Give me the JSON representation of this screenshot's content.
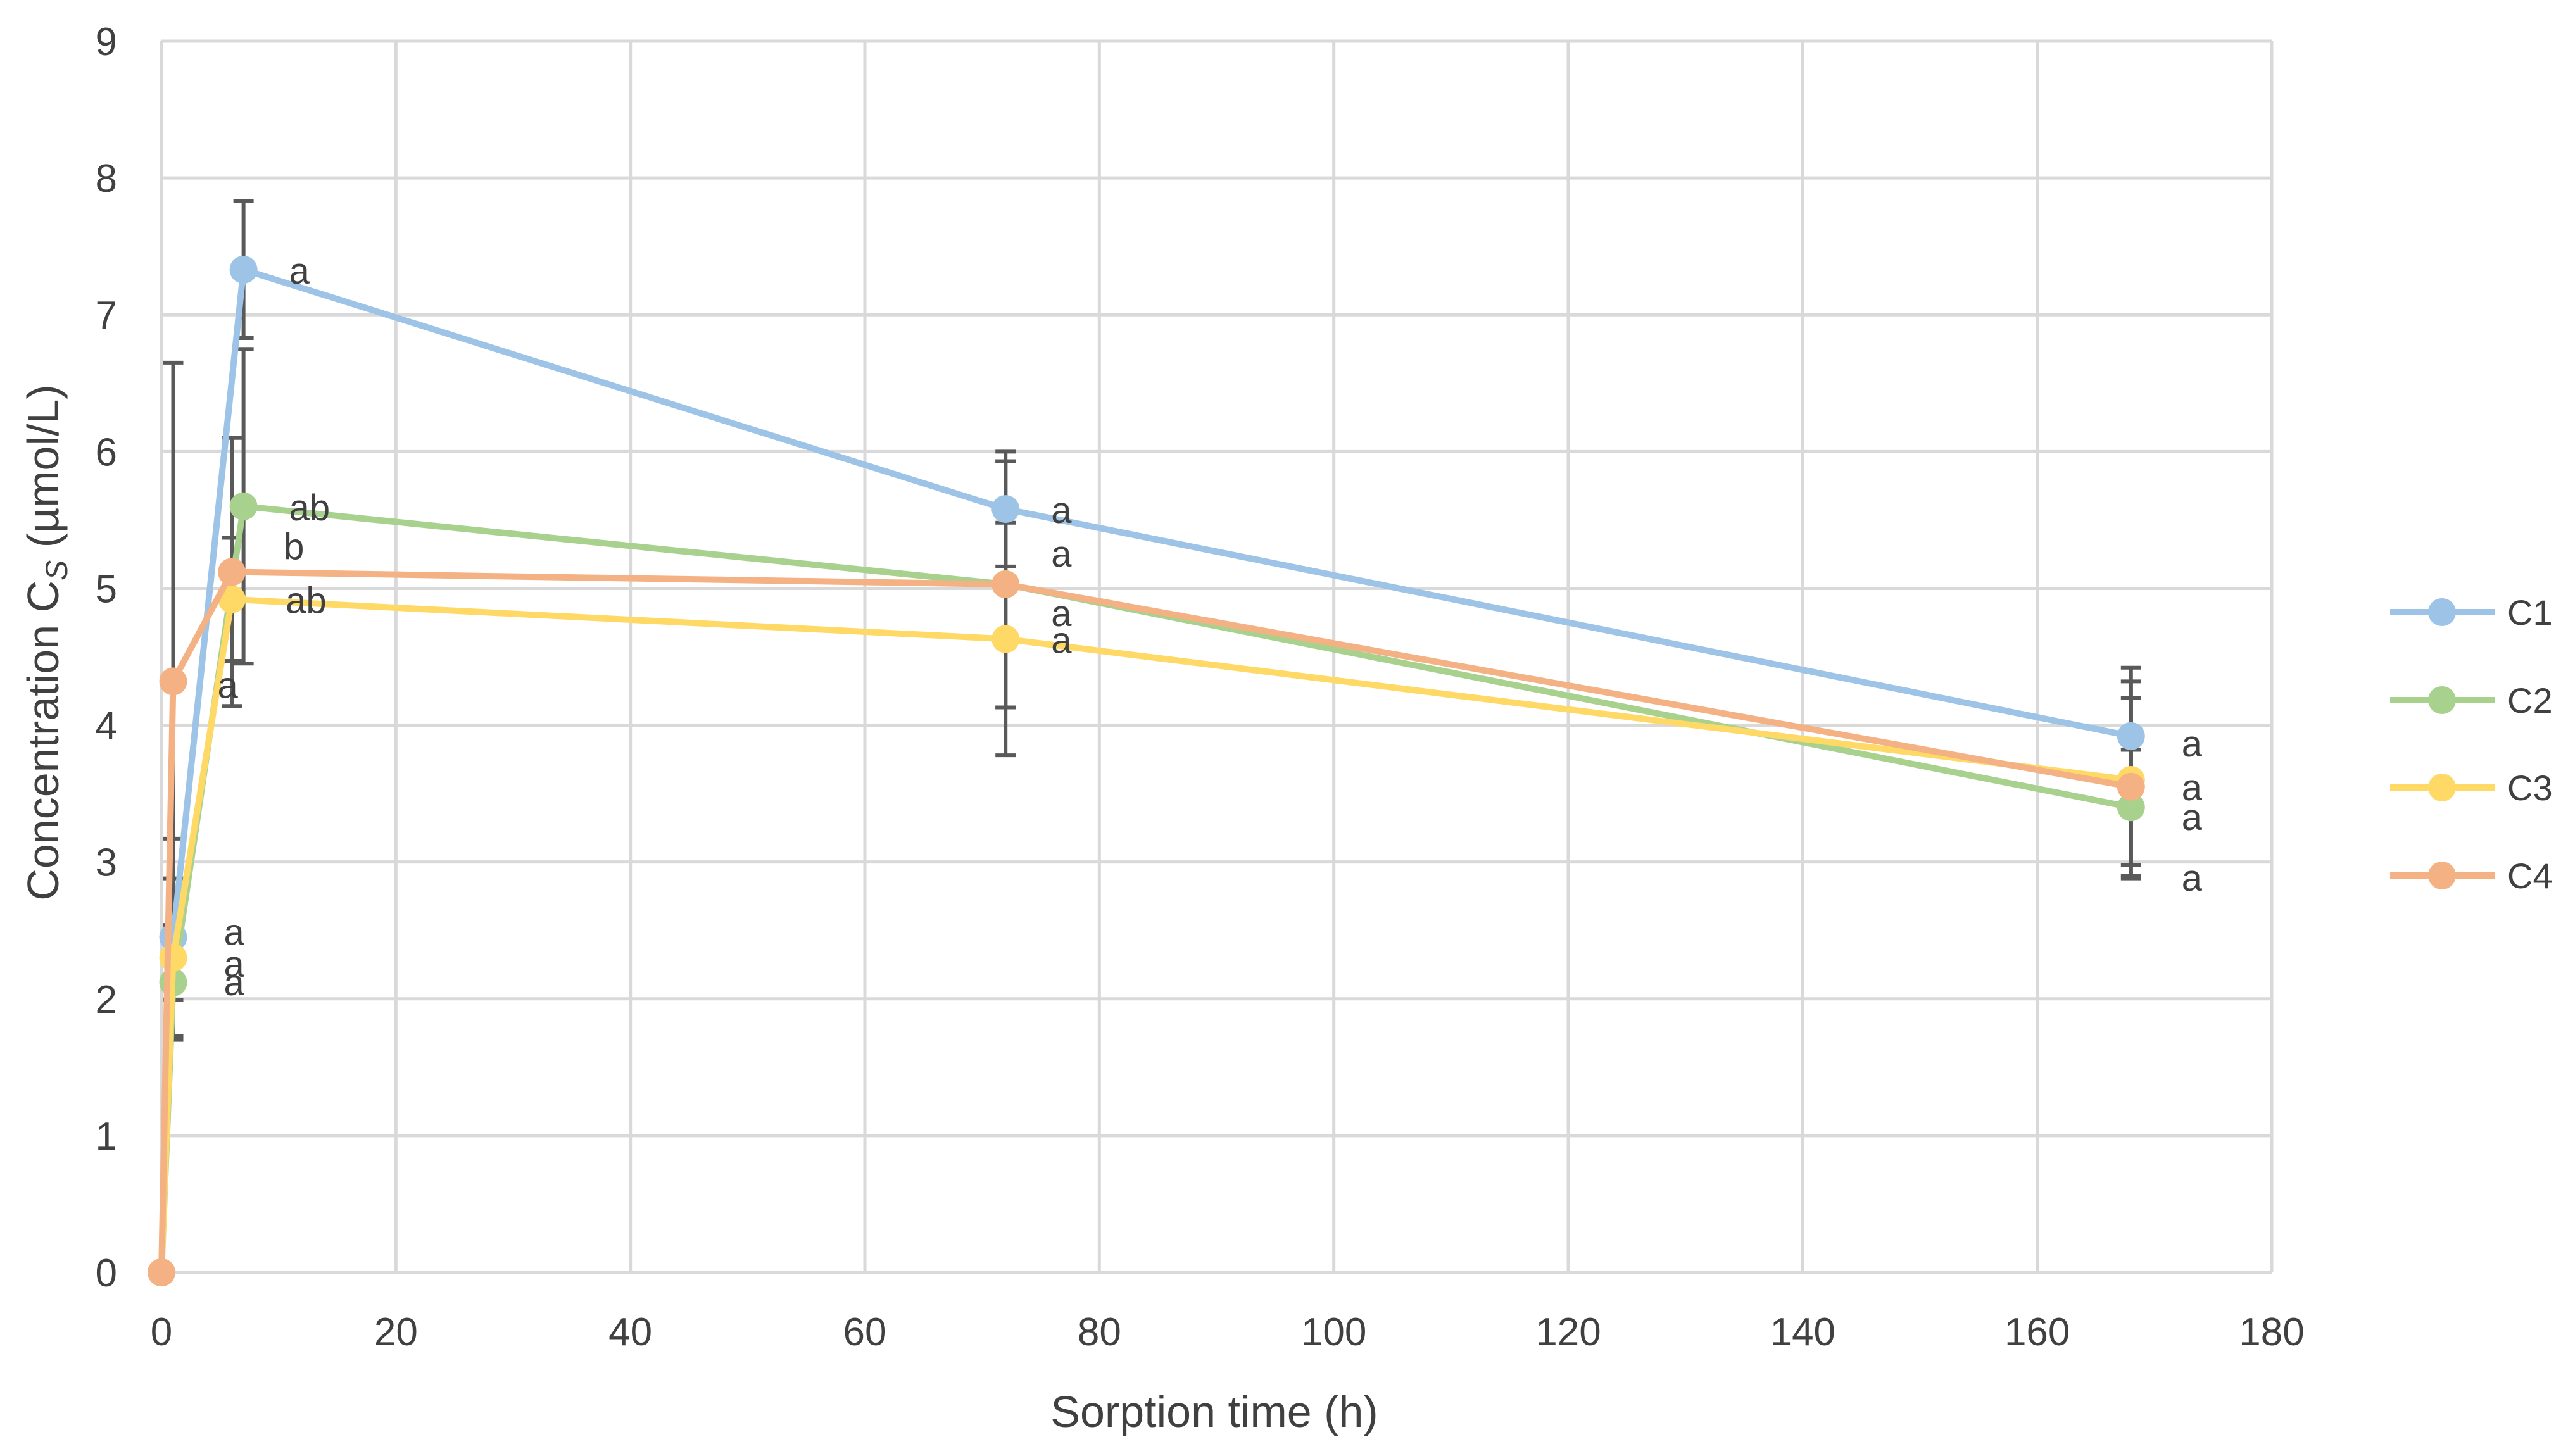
{
  "chart_data": {
    "type": "line",
    "title": "",
    "xlabel": "Sorption time (h)",
    "ylabel_main": "Concentration C",
    "ylabel_sub": "S",
    "ylabel_unit": " (µmol/L)",
    "xlim": [
      0,
      180
    ],
    "ylim": [
      0,
      9
    ],
    "xticks": [
      0,
      20,
      40,
      60,
      80,
      100,
      120,
      140,
      160,
      180
    ],
    "yticks": [
      0,
      1,
      2,
      3,
      4,
      5,
      6,
      7,
      8,
      9
    ],
    "grid": true,
    "legend_position": "right",
    "series": [
      {
        "name": "C1",
        "color": "#9dc3e6",
        "points": [
          {
            "x": 0,
            "y": 0,
            "err": 0,
            "label": ""
          },
          {
            "x": 1,
            "y": 2.45,
            "err": 0.72,
            "label": "a"
          },
          {
            "x": 7,
            "y": 7.33,
            "err": 0.5,
            "label": "a"
          },
          {
            "x": 72,
            "y": 5.58,
            "err": 0.42,
            "label": "a"
          },
          {
            "x": 168,
            "y": 3.92,
            "err": 0.5,
            "label": "a"
          }
        ]
      },
      {
        "name": "C2",
        "color": "#a9d18e",
        "points": [
          {
            "x": 0,
            "y": 0,
            "err": 0,
            "label": ""
          },
          {
            "x": 1,
            "y": 2.12,
            "err": 0.42,
            "label": "a"
          },
          {
            "x": 7,
            "y": 5.6,
            "err": 1.15,
            "label": "ab"
          },
          {
            "x": 72,
            "y": 5.03,
            "err": 0.9,
            "label": "a"
          },
          {
            "x": 168,
            "y": 3.4,
            "err": 0.42,
            "label": "a"
          }
        ]
      },
      {
        "name": "C3",
        "color": "#ffd966",
        "points": [
          {
            "x": 0,
            "y": 0,
            "err": 0,
            "label": ""
          },
          {
            "x": 1,
            "y": 2.3,
            "err": 0.58,
            "label": "a"
          },
          {
            "x": 6,
            "y": 4.92,
            "err": 0.45,
            "label": "ab"
          },
          {
            "x": 72,
            "y": 4.63,
            "err": 0.85,
            "label": "a"
          },
          {
            "x": 168,
            "y": 3.6,
            "err": 0.72,
            "label": "a"
          }
        ]
      },
      {
        "name": "C4",
        "color": "#f4b183",
        "points": [
          {
            "x": 0,
            "y": 0,
            "err": 0,
            "label": ""
          },
          {
            "x": 1,
            "y": 4.32,
            "err": 2.33,
            "label": "a"
          },
          {
            "x": 6,
            "y": 5.12,
            "err": 0.98,
            "label": "b"
          },
          {
            "x": 72,
            "y": 5.03,
            "err": 0.9,
            "label": "a"
          },
          {
            "x": 168,
            "y": 3.55,
            "err": 0.65,
            "label": "a"
          }
        ]
      }
    ]
  }
}
